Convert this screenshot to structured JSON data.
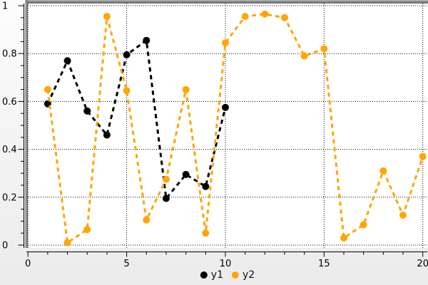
{
  "chart_data": {
    "type": "line",
    "title": "",
    "xlabel": "",
    "ylabel": "",
    "xlim": [
      0,
      20
    ],
    "ylim": [
      0,
      1
    ],
    "x_major_ticks": [
      0,
      5,
      10,
      15,
      20
    ],
    "x_minor_step": 1,
    "y_major_ticks": [
      0,
      0.2,
      0.4,
      0.6,
      0.8,
      1
    ],
    "y_minor_step": 0.05,
    "grid": "dotted",
    "line_style": "dashed",
    "marker": "filled-circle",
    "legend_position": "bottom-center",
    "series": [
      {
        "name": "y1",
        "color": "#000000",
        "x": [
          1,
          2,
          3,
          4,
          5,
          6,
          7,
          8,
          9,
          10
        ],
        "y": [
          0.59,
          0.77,
          0.56,
          0.46,
          0.795,
          0.855,
          0.195,
          0.295,
          0.245,
          0.575
        ]
      },
      {
        "name": "y2",
        "color": "#ffa505",
        "x": [
          1,
          2,
          3,
          4,
          5,
          6,
          7,
          8,
          9,
          10,
          11,
          12,
          13,
          14,
          15,
          16,
          17,
          18,
          19,
          20
        ],
        "y": [
          0.65,
          0.01,
          0.065,
          0.955,
          0.645,
          0.105,
          0.275,
          0.65,
          0.05,
          0.845,
          0.955,
          0.965,
          0.95,
          0.79,
          0.82,
          0.03,
          0.085,
          0.31,
          0.125,
          0.37
        ]
      }
    ]
  },
  "axes": {
    "x_tick_labels": [
      "0",
      "5",
      "10",
      "15",
      "20"
    ],
    "y_tick_labels": [
      "0",
      "0.2",
      "0.4",
      "0.6",
      "0.8",
      "1"
    ]
  },
  "legend": {
    "items": [
      {
        "label": "y1",
        "color": "#000000"
      },
      {
        "label": "y2",
        "color": "#ffa505"
      }
    ]
  },
  "colors": {
    "canvas_bg": "#ffffff",
    "grid": "#000000",
    "axis": "#000000",
    "frame_outer": "#a8a8a8",
    "frame_inner": "#787878"
  }
}
